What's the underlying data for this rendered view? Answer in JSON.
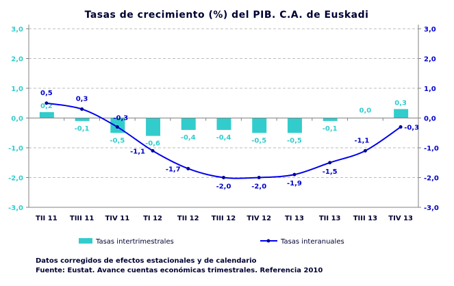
{
  "chart_data": {
    "type": "bar+line",
    "title": "Tasas de crecimiento (%) del PIB. C.A. de Euskadi",
    "categories": [
      "TII 11",
      "TIII 11",
      "TIV 11",
      "TI 12",
      "TII 12",
      "TIII 12",
      "TIV 12",
      "TI 13",
      "TII 13",
      "TIII 13",
      "TIV 13"
    ],
    "series": [
      {
        "name": "Tasas intertrimestrales",
        "type": "bar",
        "axis": "left",
        "color": "#33cccc",
        "values": [
          0.2,
          -0.1,
          -0.5,
          -0.6,
          -0.4,
          -0.4,
          -0.5,
          -0.5,
          -0.1,
          0.0,
          0.3
        ],
        "labels": [
          "0,2",
          "-0,1",
          "-0,5",
          "-0,6",
          "-0,4",
          "-0,4",
          "-0,5",
          "-0,5",
          "-0,1",
          "0,0",
          "0,3"
        ]
      },
      {
        "name": "Tasas interanuales",
        "type": "line",
        "axis": "right",
        "color": "#0000ee",
        "values": [
          0.5,
          0.3,
          -0.3,
          -1.1,
          -1.7,
          -2.0,
          -2.0,
          -1.9,
          -1.5,
          -1.1,
          -0.3
        ],
        "labels": [
          "0,5",
          "0,3",
          "-0,3",
          "-1,1",
          "-1,7",
          "-2,0",
          "-2,0",
          "-1,9",
          "-1,5",
          "-1,1",
          "-0,3"
        ]
      }
    ],
    "ylim": [
      -3,
      3
    ],
    "y_ticks": [
      "3,0",
      "2,0",
      "1,0",
      "0,0",
      "-1,0",
      "-2,0",
      "-3,0"
    ],
    "grid": true,
    "legend_position": "bottom",
    "colors": {
      "left_axis": "#33cccc",
      "right_axis": "#0000cc",
      "category_text": "#000033",
      "title": "#000033"
    }
  },
  "notes": {
    "line1": "Datos corregidos de efectos estacionales y de calendario",
    "line2": "Fuente: Eustat. Avance cuentas económicas trimestrales. Referencia 2010"
  }
}
